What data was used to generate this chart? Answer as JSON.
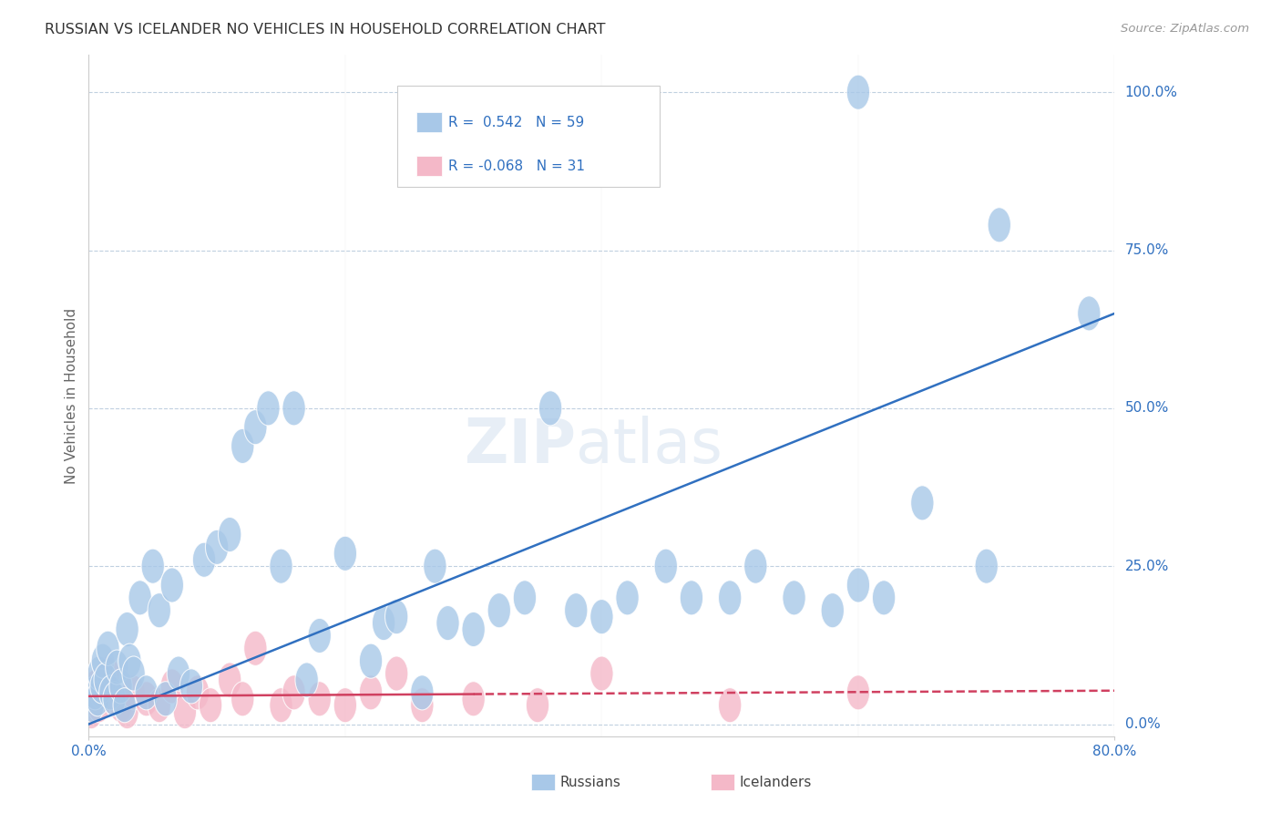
{
  "title": "RUSSIAN VS ICELANDER NO VEHICLES IN HOUSEHOLD CORRELATION CHART",
  "source": "Source: ZipAtlas.com",
  "ylabel": "No Vehicles in Household",
  "ytick_labels": [
    "0.0%",
    "25.0%",
    "50.0%",
    "75.0%",
    "100.0%"
  ],
  "ytick_values": [
    0,
    25,
    50,
    75,
    100
  ],
  "xlim": [
    0,
    80
  ],
  "ylim": [
    -2,
    106
  ],
  "russian_color": "#a8c8e8",
  "icelander_color": "#f4b8c8",
  "russian_line_color": "#3070c0",
  "icelander_line_color": "#d04060",
  "background_color": "#ffffff",
  "grid_color": "#c0d0e0",
  "russians_x": [
    0.3,
    0.5,
    0.7,
    0.8,
    1.0,
    1.1,
    1.3,
    1.5,
    1.7,
    2.0,
    2.2,
    2.5,
    2.8,
    3.0,
    3.2,
    3.5,
    4.0,
    4.5,
    5.0,
    5.5,
    6.0,
    6.5,
    7.0,
    8.0,
    9.0,
    10.0,
    11.0,
    12.0,
    13.0,
    14.0,
    15.0,
    16.0,
    17.0,
    18.0,
    20.0,
    22.0,
    23.0,
    24.0,
    26.0,
    27.0,
    28.0,
    30.0,
    32.0,
    34.0,
    36.0,
    38.0,
    40.0,
    42.0,
    45.0,
    47.0,
    50.0,
    52.0,
    55.0,
    58.0,
    60.0,
    62.0,
    65.0,
    70.0,
    78.0
  ],
  "russians_y": [
    3,
    5,
    4,
    8,
    6,
    10,
    7,
    12,
    5,
    4,
    9,
    6,
    3,
    15,
    10,
    8,
    20,
    5,
    25,
    18,
    4,
    22,
    8,
    6,
    26,
    28,
    30,
    44,
    47,
    50,
    25,
    50,
    7,
    14,
    27,
    10,
    16,
    17,
    5,
    25,
    16,
    15,
    18,
    20,
    50,
    18,
    17,
    20,
    25,
    20,
    20,
    25,
    20,
    18,
    22,
    20,
    35,
    25,
    65
  ],
  "icelanders_x": [
    0.2,
    0.4,
    0.6,
    0.8,
    1.0,
    1.5,
    2.0,
    2.5,
    3.0,
    3.5,
    4.5,
    5.5,
    6.5,
    7.5,
    8.5,
    9.5,
    11.0,
    12.0,
    13.0,
    15.0,
    16.0,
    18.0,
    20.0,
    22.0,
    24.0,
    26.0,
    30.0,
    35.0,
    40.0,
    50.0,
    60.0
  ],
  "icelanders_y": [
    2,
    4,
    6,
    3,
    5,
    8,
    4,
    3,
    2,
    5,
    4,
    3,
    6,
    2,
    5,
    3,
    7,
    4,
    12,
    3,
    5,
    4,
    3,
    5,
    8,
    3,
    4,
    3,
    8,
    3,
    5
  ],
  "russian_trendline": [
    0,
    80,
    0,
    65
  ],
  "icelander_trendline_solid": [
    0,
    30,
    5,
    4
  ],
  "icelander_trendline_dash": [
    30,
    80,
    4,
    2
  ]
}
